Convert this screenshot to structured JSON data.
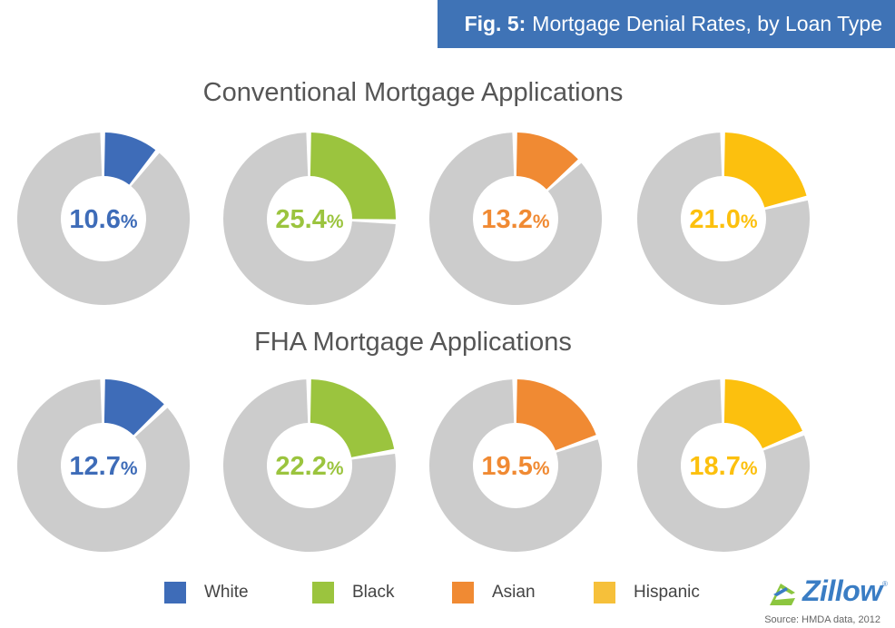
{
  "banner": {
    "prefix": "Fig. 5:",
    "text": "Mortgage Denial Rates, by Loan Type"
  },
  "colors": {
    "banner_bg": "#3f73b6",
    "remainder": "#cccccc",
    "White": "#3e6cb8",
    "Black": "#9bc43e",
    "Asian": "#f08a33",
    "Hispanic": "#fcc00e"
  },
  "legend": [
    {
      "label": "White",
      "color": "#3e6cb8"
    },
    {
      "label": "Black",
      "color": "#9bc43e"
    },
    {
      "label": "Asian",
      "color": "#f08a33"
    },
    {
      "label": "Hispanic",
      "color": "#f6c03a"
    }
  ],
  "logo": {
    "name": "zillow-logo",
    "text": "Zillow",
    "reg": "®"
  },
  "source": "Source: HMDA data, 2012",
  "chart_data": [
    {
      "type": "pie",
      "title": "Conventional Mortgage Applications",
      "categories": [
        "White",
        "Black",
        "Asian",
        "Hispanic"
      ],
      "values": [
        10.6,
        25.4,
        13.2,
        21.0
      ],
      "labels": [
        "10.6",
        "25.4",
        "13.2",
        "21.0"
      ],
      "unit": "%"
    },
    {
      "type": "pie",
      "title": "FHA Mortgage Applications",
      "categories": [
        "White",
        "Black",
        "Asian",
        "Hispanic"
      ],
      "values": [
        12.7,
        22.2,
        19.5,
        18.7
      ],
      "labels": [
        "12.7",
        "22.2",
        "19.5",
        "18.7"
      ],
      "unit": "%"
    }
  ]
}
